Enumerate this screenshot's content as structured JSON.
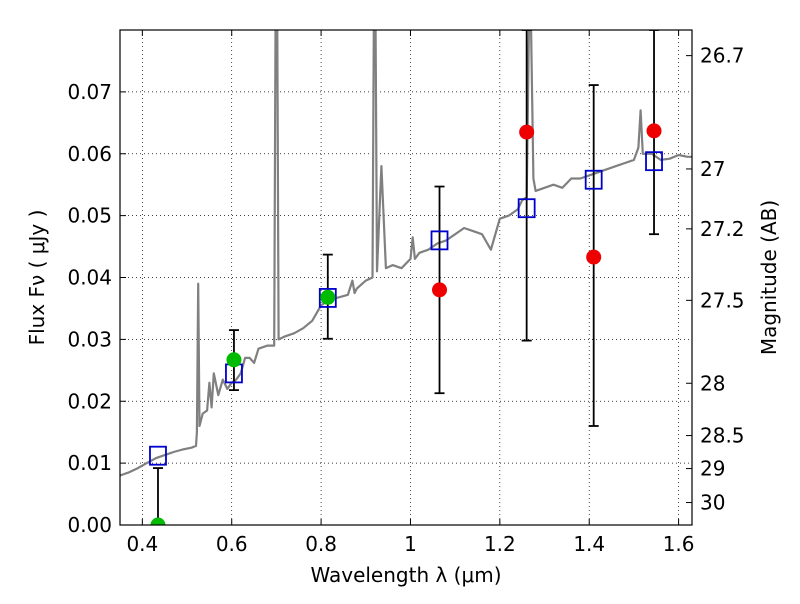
{
  "chart_data": {
    "type": "scatter",
    "xlabel": "Wavelength  λ (μm)",
    "ylabel": "Flux  Fν  ( μJy )",
    "ylabel_right": "Magnitude (AB)",
    "xlim": [
      0.35,
      1.63
    ],
    "ylim": [
      0.0,
      0.08
    ],
    "grid": true,
    "x_ticks": [
      0.4,
      0.6,
      0.8,
      1.0,
      1.2,
      1.4,
      1.6
    ],
    "x_tick_labels": [
      "0.4",
      "0.6",
      "0.8",
      "1",
      "1.2",
      "1.4",
      "1.6"
    ],
    "y_ticks": [
      0.0,
      0.01,
      0.02,
      0.03,
      0.04,
      0.05,
      0.06,
      0.07
    ],
    "y_tick_labels": [
      "0.00",
      "0.01",
      "0.02",
      "0.03",
      "0.04",
      "0.05",
      "0.06",
      "0.07"
    ],
    "right_ticks": [
      {
        "mag": 26.7,
        "label": "26.7"
      },
      {
        "mag": 27.0,
        "label": "27"
      },
      {
        "mag": 27.2,
        "label": "27.2"
      },
      {
        "mag": 27.5,
        "label": "27.5"
      },
      {
        "mag": 28.0,
        "label": "28"
      },
      {
        "mag": 28.5,
        "label": "28.5"
      },
      {
        "mag": 29.0,
        "label": "29"
      },
      {
        "mag": 30.0,
        "label": "30"
      }
    ],
    "colors": {
      "spectrum": "#808080",
      "model_box": "#0000cc",
      "measured_green": "#00bb00",
      "measured_red": "#ee0000",
      "errorbar": "#000000"
    },
    "spectrum": [
      [
        0.35,
        0.008
      ],
      [
        0.37,
        0.0085
      ],
      [
        0.39,
        0.0092
      ],
      [
        0.41,
        0.01
      ],
      [
        0.43,
        0.0108
      ],
      [
        0.45,
        0.0113
      ],
      [
        0.47,
        0.0118
      ],
      [
        0.49,
        0.0122
      ],
      [
        0.51,
        0.0125
      ],
      [
        0.52,
        0.0128
      ],
      [
        0.522,
        0.015
      ],
      [
        0.525,
        0.039
      ],
      [
        0.528,
        0.016
      ],
      [
        0.535,
        0.018
      ],
      [
        0.545,
        0.0185
      ],
      [
        0.55,
        0.023
      ],
      [
        0.555,
        0.019
      ],
      [
        0.56,
        0.0245
      ],
      [
        0.57,
        0.021
      ],
      [
        0.58,
        0.0235
      ],
      [
        0.59,
        0.022
      ],
      [
        0.6,
        0.023
      ],
      [
        0.61,
        0.0235
      ],
      [
        0.62,
        0.0245
      ],
      [
        0.63,
        0.027
      ],
      [
        0.64,
        0.027
      ],
      [
        0.65,
        0.0262
      ],
      [
        0.66,
        0.0285
      ],
      [
        0.68,
        0.029
      ],
      [
        0.695,
        0.029
      ],
      [
        0.698,
        0.08
      ],
      [
        0.702,
        0.08
      ],
      [
        0.705,
        0.03
      ],
      [
        0.72,
        0.0305
      ],
      [
        0.74,
        0.031
      ],
      [
        0.76,
        0.0318
      ],
      [
        0.78,
        0.033
      ],
      [
        0.8,
        0.0355
      ],
      [
        0.82,
        0.0365
      ],
      [
        0.84,
        0.0368
      ],
      [
        0.86,
        0.0372
      ],
      [
        0.87,
        0.0395
      ],
      [
        0.875,
        0.0375
      ],
      [
        0.88,
        0.0382
      ],
      [
        0.9,
        0.0395
      ],
      [
        0.915,
        0.04
      ],
      [
        0.918,
        0.08
      ],
      [
        0.922,
        0.08
      ],
      [
        0.925,
        0.041
      ],
      [
        0.935,
        0.058
      ],
      [
        0.945,
        0.0415
      ],
      [
        0.96,
        0.042
      ],
      [
        0.98,
        0.0415
      ],
      [
        1.0,
        0.043
      ],
      [
        1.005,
        0.0465
      ],
      [
        1.01,
        0.043
      ],
      [
        1.02,
        0.044
      ],
      [
        1.04,
        0.0445
      ],
      [
        1.06,
        0.0455
      ],
      [
        1.08,
        0.046
      ],
      [
        1.1,
        0.047
      ],
      [
        1.12,
        0.048
      ],
      [
        1.14,
        0.0475
      ],
      [
        1.16,
        0.047
      ],
      [
        1.18,
        0.0445
      ],
      [
        1.2,
        0.0495
      ],
      [
        1.22,
        0.05
      ],
      [
        1.24,
        0.051
      ],
      [
        1.25,
        0.0525
      ],
      [
        1.26,
        0.053
      ],
      [
        1.265,
        0.08
      ],
      [
        1.27,
        0.08
      ],
      [
        1.275,
        0.056
      ],
      [
        1.28,
        0.054
      ],
      [
        1.3,
        0.0545
      ],
      [
        1.32,
        0.055
      ],
      [
        1.34,
        0.0545
      ],
      [
        1.36,
        0.056
      ],
      [
        1.38,
        0.056
      ],
      [
        1.4,
        0.0565
      ],
      [
        1.42,
        0.057
      ],
      [
        1.44,
        0.0575
      ],
      [
        1.46,
        0.058
      ],
      [
        1.48,
        0.0585
      ],
      [
        1.5,
        0.059
      ],
      [
        1.51,
        0.061
      ],
      [
        1.515,
        0.067
      ],
      [
        1.52,
        0.06
      ],
      [
        1.54,
        0.06
      ],
      [
        1.56,
        0.059
      ],
      [
        1.58,
        0.0592
      ],
      [
        1.6,
        0.0598
      ],
      [
        1.62,
        0.0595
      ],
      [
        1.63,
        0.0595
      ]
    ],
    "model_points": [
      {
        "x": 0.435,
        "y": 0.0112
      },
      {
        "x": 0.605,
        "y": 0.0245
      },
      {
        "x": 0.815,
        "y": 0.0367
      },
      {
        "x": 1.065,
        "y": 0.046
      },
      {
        "x": 1.26,
        "y": 0.0512
      },
      {
        "x": 1.41,
        "y": 0.0558
      },
      {
        "x": 1.545,
        "y": 0.0588
      }
    ],
    "measured_points": [
      {
        "x": 0.435,
        "y": 0.0,
        "err_low": 0.0,
        "err_high": 0.0092,
        "color": "green"
      },
      {
        "x": 0.605,
        "y": 0.0267,
        "err_low": 0.0218,
        "err_high": 0.0315,
        "color": "green"
      },
      {
        "x": 0.815,
        "y": 0.0368,
        "err_low": 0.0301,
        "err_high": 0.0437,
        "color": "green"
      },
      {
        "x": 1.065,
        "y": 0.038,
        "err_low": 0.0213,
        "err_high": 0.0547,
        "color": "red"
      },
      {
        "x": 1.26,
        "y": 0.0635,
        "err_low": 0.0298,
        "err_high": 0.08,
        "color": "red"
      },
      {
        "x": 1.41,
        "y": 0.0433,
        "err_low": 0.016,
        "err_high": 0.0711,
        "color": "red"
      },
      {
        "x": 1.545,
        "y": 0.0637,
        "err_low": 0.047,
        "err_high": 0.08,
        "color": "red"
      }
    ]
  }
}
